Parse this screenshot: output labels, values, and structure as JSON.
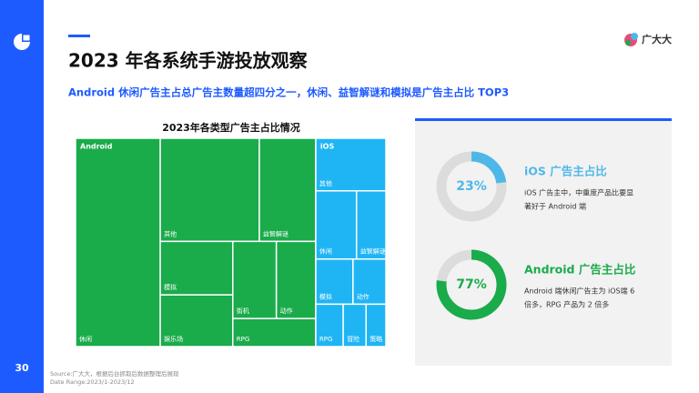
{
  "header": {
    "page_number": "30",
    "title": "2023 年各系统手游投放观察",
    "subtitle": "Android 休闲广告主占总广告主数量超四分之一，休闲、益智解谜和模拟是广告主占比 TOP3",
    "logo": "广大大"
  },
  "footer": {
    "source": "Source:广大大，根据后台抓取后数据整理后展现",
    "date_range": "Date Range:2023/1-2023/12"
  },
  "chart_data": [
    {
      "type": "treemap",
      "title": "2023年各类型广告主占比情况",
      "groups": [
        {
          "name": "Android",
          "color": "#1aab4b",
          "children": [
            {
              "name": "休闲",
              "value": 27.3
            },
            {
              "name": "其他",
              "value": 15.8
            },
            {
              "name": "益智解谜",
              "value": 9.0
            },
            {
              "name": "模拟",
              "value": 6.0
            },
            {
              "name": "娱乐场",
              "value": 5.8
            },
            {
              "name": "街机",
              "value": 5.2
            },
            {
              "name": "动作",
              "value": 4.7
            },
            {
              "name": "RPG",
              "value": 3.6
            }
          ]
        },
        {
          "name": "iOS",
          "color": "#1fb5f5",
          "children": [
            {
              "name": "其他",
              "value": 5.7
            },
            {
              "name": "休闲",
              "value": 4.3
            },
            {
              "name": "益智解谜",
              "value": 3.1
            },
            {
              "name": "模拟",
              "value": 2.6
            },
            {
              "name": "动作",
              "value": 2.3
            },
            {
              "name": "RPG",
              "value": 1.8
            },
            {
              "name": "冒险",
              "value": 1.5
            },
            {
              "name": "策略",
              "value": 1.3
            }
          ]
        }
      ]
    },
    {
      "type": "donut",
      "title": "iOS 广告主占比",
      "values": [
        23
      ],
      "value_labels": [
        "23%"
      ],
      "color": "#4db8e8",
      "description": [
        "iOS 广告主中，中重度产品比要显",
        "著好于 Android 端"
      ]
    },
    {
      "type": "donut",
      "title": "Android 广告主占比",
      "values": [
        77
      ],
      "value_labels": [
        "77%"
      ],
      "color": "#1aab4b",
      "description": [
        "Android 端休闲广告主为 iOS端  6",
        "倍多，RPG 产品为 2 倍多"
      ]
    }
  ]
}
